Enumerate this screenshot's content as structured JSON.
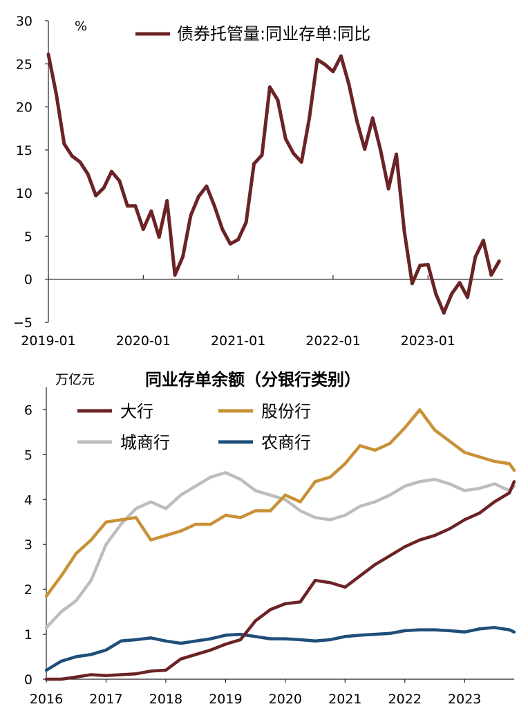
{
  "chart_data": [
    {
      "type": "line",
      "unit_label": "%",
      "ylim": [
        -5,
        30
      ],
      "y_ticks": [
        "−5",
        "0",
        "5",
        "10",
        "15",
        "20",
        "25",
        "30"
      ],
      "y_tick_values": [
        -5,
        0,
        5,
        10,
        15,
        20,
        25,
        30
      ],
      "x_tick_labels": [
        "2019-01",
        "2020-01",
        "2021-01",
        "2022-01",
        "2023-01"
      ],
      "x_tick_values": [
        0,
        12,
        24,
        36,
        48
      ],
      "xlim": [
        0,
        57.5
      ],
      "grid": false,
      "legend_position": "top",
      "series": [
        {
          "name": "债券托管量:同业存单:同比",
          "color": "#6B2326",
          "x": [
            0,
            1,
            2,
            3,
            4,
            5,
            6,
            7,
            8,
            9,
            10,
            11,
            12,
            13,
            14,
            15,
            16,
            17,
            18,
            19,
            20,
            21,
            22,
            23,
            24,
            25,
            26,
            27,
            28,
            29,
            30,
            31,
            32,
            33,
            34,
            35,
            36,
            37,
            38,
            39,
            40,
            41,
            42,
            43,
            44,
            45,
            46,
            47,
            48,
            49,
            50,
            51,
            52,
            53,
            54,
            55,
            56,
            57
          ],
          "values": [
            26.1,
            21.5,
            15.7,
            14.3,
            13.6,
            12.2,
            9.7,
            10.6,
            12.5,
            11.4,
            8.5,
            8.5,
            5.8,
            7.9,
            4.9,
            9.1,
            0.5,
            2.6,
            7.4,
            9.6,
            10.8,
            8.5,
            5.8,
            4.1,
            4.6,
            6.6,
            13.4,
            14.4,
            22.3,
            20.8,
            16.3,
            14.6,
            13.6,
            18.7,
            25.5,
            24.9,
            24.1,
            25.9,
            22.6,
            18.4,
            15.1,
            18.7,
            15.0,
            10.5,
            14.5,
            5.6,
            -0.5,
            1.6,
            1.7,
            -1.7,
            -3.9,
            -1.7,
            -0.4,
            -2.1,
            2.6,
            4.5,
            0.5,
            2.1
          ]
        }
      ]
    },
    {
      "type": "line",
      "title": "同业存单余额（分银行类别）",
      "unit_label": "万亿元",
      "ylim": [
        0,
        6.5
      ],
      "y_ticks": [
        "0",
        "1",
        "2",
        "3",
        "4",
        "5",
        "6"
      ],
      "y_tick_values": [
        0,
        1,
        2,
        3,
        4,
        5,
        6
      ],
      "x_tick_labels": [
        "2016",
        "2017",
        "2018",
        "2019",
        "2020",
        "2021",
        "2022",
        "2023"
      ],
      "x_tick_values": [
        2016,
        2017,
        2018,
        2019,
        2020,
        2021,
        2022,
        2023
      ],
      "xlim": [
        2016,
        2023.83
      ],
      "grid": false,
      "legend_position": "top-left",
      "x": [
        2016.0,
        2016.25,
        2016.5,
        2016.75,
        2017.0,
        2017.25,
        2017.5,
        2017.75,
        2018.0,
        2018.25,
        2018.5,
        2018.75,
        2019.0,
        2019.25,
        2019.5,
        2019.75,
        2020.0,
        2020.25,
        2020.5,
        2020.75,
        2021.0,
        2021.25,
        2021.5,
        2021.75,
        2022.0,
        2022.25,
        2022.5,
        2022.75,
        2023.0,
        2023.25,
        2023.5,
        2023.75,
        2023.83
      ],
      "series": [
        {
          "name": "大行",
          "color": "#6B2326",
          "values": [
            0.0,
            0.0,
            0.05,
            0.1,
            0.08,
            0.1,
            0.12,
            0.18,
            0.2,
            0.45,
            0.55,
            0.65,
            0.78,
            0.88,
            1.3,
            1.55,
            1.68,
            1.72,
            2.2,
            2.15,
            2.05,
            2.3,
            2.55,
            2.75,
            2.95,
            3.1,
            3.2,
            3.35,
            3.55,
            3.7,
            3.95,
            4.15,
            4.4
          ]
        },
        {
          "name": "股份行",
          "color": "#C89136",
          "values": [
            1.85,
            2.3,
            2.8,
            3.1,
            3.5,
            3.55,
            3.6,
            3.1,
            3.2,
            3.3,
            3.45,
            3.45,
            3.65,
            3.6,
            3.75,
            3.75,
            4.1,
            3.95,
            4.4,
            4.5,
            4.8,
            5.2,
            5.1,
            5.25,
            5.6,
            6.0,
            5.55,
            5.3,
            5.05,
            4.95,
            4.85,
            4.8,
            4.65
          ]
        },
        {
          "name": "城商行",
          "color": "#BDBDBD",
          "values": [
            1.15,
            1.5,
            1.75,
            2.2,
            3.0,
            3.45,
            3.8,
            3.95,
            3.8,
            4.1,
            4.3,
            4.5,
            4.6,
            4.45,
            4.2,
            4.1,
            4.0,
            3.75,
            3.6,
            3.55,
            3.65,
            3.85,
            3.95,
            4.1,
            4.3,
            4.4,
            4.45,
            4.35,
            4.2,
            4.25,
            4.35,
            4.2,
            4.3
          ]
        },
        {
          "name": "农商行",
          "color": "#1F4E79",
          "values": [
            0.2,
            0.4,
            0.5,
            0.55,
            0.65,
            0.85,
            0.88,
            0.92,
            0.85,
            0.8,
            0.85,
            0.9,
            0.98,
            1.0,
            0.95,
            0.9,
            0.9,
            0.88,
            0.85,
            0.88,
            0.95,
            0.98,
            1.0,
            1.02,
            1.08,
            1.1,
            1.1,
            1.08,
            1.05,
            1.12,
            1.15,
            1.1,
            1.05
          ]
        }
      ]
    }
  ]
}
